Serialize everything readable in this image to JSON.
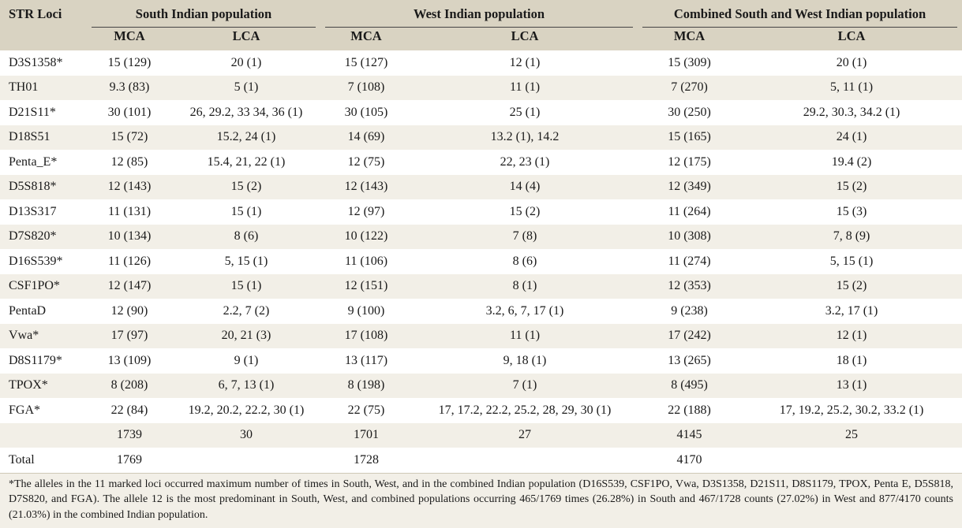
{
  "header": {
    "col_loci": "STR Loci",
    "groups": [
      "South Indian population",
      "West Indian population",
      "Combined South and West Indian population"
    ],
    "sub": [
      "MCA",
      "LCA"
    ]
  },
  "rows": [
    {
      "locus": "D3S1358*",
      "s_mca": "15 (129)",
      "s_lca": "20 (1)",
      "w_mca": "15 (127)",
      "w_lca": "12 (1)",
      "c_mca": "15 (309)",
      "c_lca": "20 (1)"
    },
    {
      "locus": "TH01",
      "s_mca": "9.3 (83)",
      "s_lca": "5 (1)",
      "w_mca": "7 (108)",
      "w_lca": "11 (1)",
      "c_mca": "7 (270)",
      "c_lca": "5, 11 (1)"
    },
    {
      "locus": "D21S11*",
      "s_mca": "30 (101)",
      "s_lca": "26, 29.2, 33 34, 36 (1)",
      "w_mca": "30 (105)",
      "w_lca": "25 (1)",
      "c_mca": "30 (250)",
      "c_lca": "29.2, 30.3, 34.2 (1)"
    },
    {
      "locus": "D18S51",
      "s_mca": "15 (72)",
      "s_lca": "15.2, 24 (1)",
      "w_mca": "14 (69)",
      "w_lca": "13.2 (1), 14.2",
      "c_mca": "15 (165)",
      "c_lca": "24 (1)"
    },
    {
      "locus": "Penta_E*",
      "s_mca": "12 (85)",
      "s_lca": "15.4, 21, 22 (1)",
      "w_mca": "12 (75)",
      "w_lca": "22, 23 (1)",
      "c_mca": "12 (175)",
      "c_lca": "19.4 (2)"
    },
    {
      "locus": "D5S818*",
      "s_mca": "12 (143)",
      "s_lca": "15 (2)",
      "w_mca": "12 (143)",
      "w_lca": "14 (4)",
      "c_mca": "12 (349)",
      "c_lca": "15 (2)"
    },
    {
      "locus": "D13S317",
      "s_mca": "11 (131)",
      "s_lca": "15 (1)",
      "w_mca": "12 (97)",
      "w_lca": "15 (2)",
      "c_mca": "11 (264)",
      "c_lca": "15 (3)"
    },
    {
      "locus": "D7S820*",
      "s_mca": "10 (134)",
      "s_lca": "8 (6)",
      "w_mca": "10 (122)",
      "w_lca": "7 (8)",
      "c_mca": "10 (308)",
      "c_lca": "7, 8 (9)"
    },
    {
      "locus": "D16S539*",
      "s_mca": "11 (126)",
      "s_lca": "5, 15 (1)",
      "w_mca": "11 (106)",
      "w_lca": "8 (6)",
      "c_mca": "11 (274)",
      "c_lca": "5, 15 (1)"
    },
    {
      "locus": "CSF1PO*",
      "s_mca": "12 (147)",
      "s_lca": "15 (1)",
      "w_mca": "12 (151)",
      "w_lca": "8 (1)",
      "c_mca": "12 (353)",
      "c_lca": "15 (2)"
    },
    {
      "locus": "PentaD",
      "s_mca": "12 (90)",
      "s_lca": "2.2, 7 (2)",
      "w_mca": "9 (100)",
      "w_lca": "3.2, 6, 7, 17 (1)",
      "c_mca": "9 (238)",
      "c_lca": "3.2, 17 (1)"
    },
    {
      "locus": "Vwa*",
      "s_mca": "17 (97)",
      "s_lca": "20, 21 (3)",
      "w_mca": "17 (108)",
      "w_lca": "11 (1)",
      "c_mca": "17 (242)",
      "c_lca": "12 (1)"
    },
    {
      "locus": "D8S1179*",
      "s_mca": "13 (109)",
      "s_lca": "9 (1)",
      "w_mca": "13 (117)",
      "w_lca": "9, 18 (1)",
      "c_mca": "13 (265)",
      "c_lca": "18 (1)"
    },
    {
      "locus": "TPOX*",
      "s_mca": "8 (208)",
      "s_lca": "6, 7, 13 (1)",
      "w_mca": "8 (198)",
      "w_lca": "7 (1)",
      "c_mca": "8 (495)",
      "c_lca": "13 (1)"
    },
    {
      "locus": "FGA*",
      "s_mca": "22 (84)",
      "s_lca": "19.2, 20.2, 22.2, 30 (1)",
      "w_mca": "22 (75)",
      "w_lca": "17, 17.2, 22.2, 25.2, 28, 29, 30 (1)",
      "c_mca": "22 (188)",
      "c_lca": "17, 19.2, 25.2, 30.2, 33.2 (1)"
    },
    {
      "locus": "",
      "s_mca": "1739",
      "s_lca": "30",
      "w_mca": "1701",
      "w_lca": "27",
      "c_mca": "4145",
      "c_lca": "25"
    },
    {
      "locus": "Total",
      "s_mca": "1769",
      "s_lca": "",
      "w_mca": "1728",
      "w_lca": "",
      "c_mca": "4170",
      "c_lca": ""
    }
  ],
  "footnote": "*The alleles in the 11 marked loci occurred maximum number of times in South, West, and in the combined Indian population (D16S539, CSF1PO, Vwa, D3S1358, D21S11, D8S1179, TPOX, Penta E, D5S818, D7S820, and FGA). The allele 12 is the most predominant in South, West, and combined populations occurring 465/1769 times (26.28%) in South and 467/1728 counts (27.02%) in West and 877/4170 counts (21.03%) in the combined Indian population."
}
